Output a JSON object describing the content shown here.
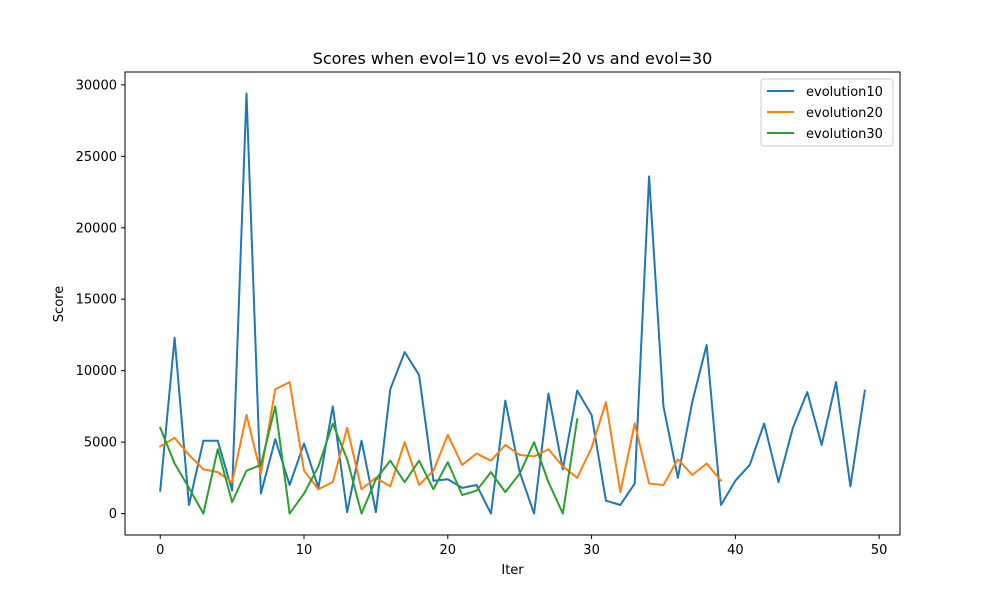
{
  "chart_data": {
    "type": "line",
    "title": "Scores when evol=10 vs evol=20 vs and evol=30",
    "xlabel": "Iter",
    "ylabel": "Score",
    "xlim": [
      -2.45,
      51.45
    ],
    "ylim": [
      -1500,
      30900
    ],
    "x_ticks": [
      0,
      10,
      20,
      30,
      40,
      50
    ],
    "y_ticks": [
      0,
      5000,
      10000,
      15000,
      20000,
      25000,
      30000
    ],
    "grid": false,
    "legend_position": "upper right",
    "series": [
      {
        "name": "evolution10",
        "color": "#1f77b4",
        "x": [
          0,
          1,
          2,
          3,
          4,
          5,
          6,
          7,
          8,
          9,
          10,
          11,
          12,
          13,
          14,
          15,
          16,
          17,
          18,
          19,
          20,
          21,
          22,
          23,
          24,
          25,
          26,
          27,
          28,
          29,
          30,
          31,
          32,
          33,
          34,
          35,
          36,
          37,
          38,
          39,
          40,
          41,
          42,
          43,
          44,
          45,
          46,
          47,
          48,
          49
        ],
        "values": [
          1600,
          12300,
          600,
          5100,
          5100,
          1600,
          29400,
          1400,
          5200,
          2000,
          4900,
          1800,
          7500,
          100,
          5100,
          100,
          8700,
          11300,
          9700,
          2300,
          2400,
          1800,
          2000,
          0,
          7900,
          2900,
          0,
          8400,
          3100,
          8600,
          6900,
          900,
          600,
          2100,
          23600,
          7500,
          2500,
          7800,
          11800,
          600,
          2300,
          3400,
          6300,
          2200,
          6000,
          8500,
          4800,
          9200,
          1900,
          8600
        ]
      },
      {
        "name": "evolution20",
        "color": "#ff7f0e",
        "x": [
          0,
          1,
          2,
          3,
          4,
          5,
          6,
          7,
          8,
          9,
          10,
          11,
          12,
          13,
          14,
          15,
          16,
          17,
          18,
          19,
          20,
          21,
          22,
          23,
          24,
          25,
          26,
          27,
          28,
          29,
          30,
          31,
          32,
          33,
          34,
          35,
          36,
          37,
          38,
          39
        ],
        "values": [
          4700,
          5300,
          4100,
          3100,
          2900,
          2200,
          6900,
          2800,
          8700,
          9200,
          3000,
          1700,
          2200,
          6000,
          1700,
          2500,
          1900,
          5000,
          2000,
          3000,
          5500,
          3400,
          4200,
          3700,
          4800,
          4100,
          4000,
          4500,
          3300,
          2500,
          4600,
          7800,
          1500,
          6300,
          2100,
          2000,
          3800,
          2700,
          3500,
          2300
        ]
      },
      {
        "name": "evolution30",
        "color": "#2ca02c",
        "x": [
          0,
          1,
          2,
          3,
          4,
          5,
          6,
          7,
          8,
          9,
          10,
          11,
          12,
          13,
          14,
          15,
          16,
          17,
          18,
          19,
          20,
          21,
          22,
          23,
          24,
          25,
          26,
          27,
          28,
          29
        ],
        "values": [
          6000,
          3500,
          1800,
          0,
          4500,
          800,
          3000,
          3400,
          7500,
          0,
          1400,
          3300,
          6300,
          3800,
          0,
          2400,
          3700,
          2200,
          3700,
          1700,
          3600,
          1300,
          1600,
          2900,
          1500,
          2800,
          5000,
          2200,
          0,
          6600
        ]
      }
    ]
  }
}
